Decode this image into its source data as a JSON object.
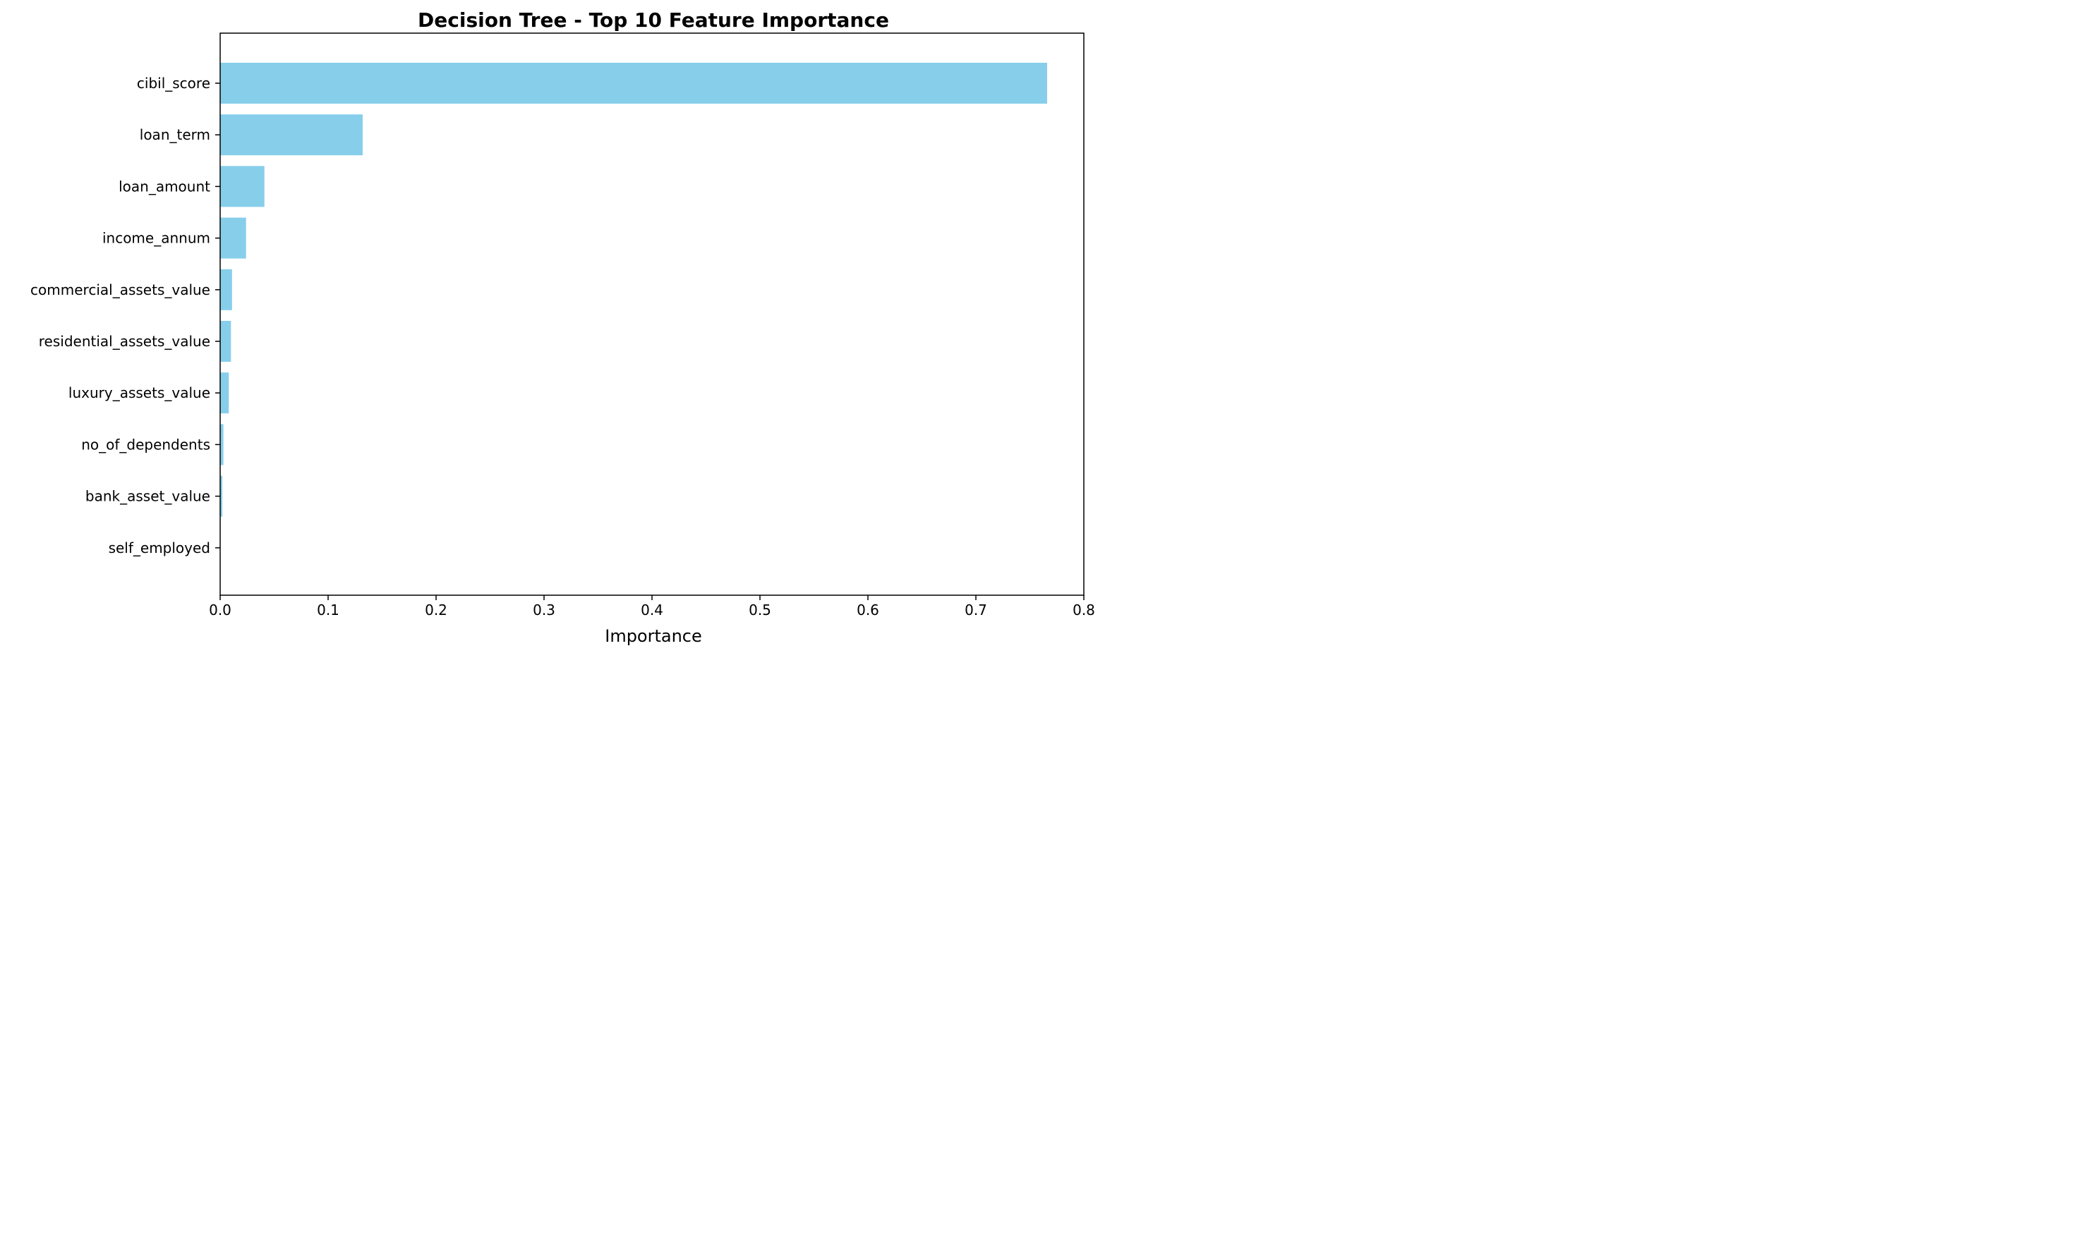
{
  "chart_data": {
    "type": "bar",
    "orientation": "horizontal",
    "title": "Decision Tree - Top 10 Feature Importance",
    "xlabel": "Importance",
    "ylabel": "",
    "xlim": [
      0,
      0.8
    ],
    "xticks": [
      "0.0",
      "0.1",
      "0.2",
      "0.3",
      "0.4",
      "0.5",
      "0.6",
      "0.7",
      "0.8"
    ],
    "categories": [
      "cibil_score",
      "loan_term",
      "loan_amount",
      "income_annum",
      "commercial_assets_value",
      "residential_assets_value",
      "luxury_assets_value",
      "no_of_dependents",
      "bank_asset_value",
      "self_employed"
    ],
    "values": [
      0.766,
      0.132,
      0.041,
      0.024,
      0.011,
      0.01,
      0.008,
      0.003,
      0.002,
      0.0
    ],
    "bar_color": "#87CEEB",
    "grid": false,
    "legend": "none"
  }
}
